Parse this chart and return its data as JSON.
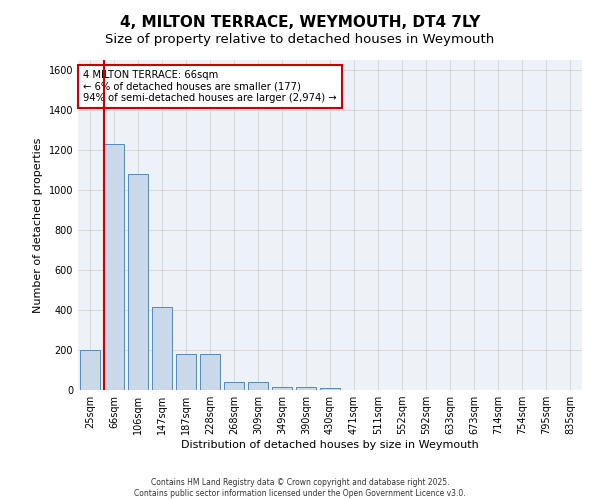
{
  "title": "4, MILTON TERRACE, WEYMOUTH, DT4 7LY",
  "subtitle": "Size of property relative to detached houses in Weymouth",
  "xlabel": "Distribution of detached houses by size in Weymouth",
  "ylabel": "Number of detached properties",
  "categories": [
    "25sqm",
    "66sqm",
    "106sqm",
    "147sqm",
    "187sqm",
    "228sqm",
    "268sqm",
    "309sqm",
    "349sqm",
    "390sqm",
    "430sqm",
    "471sqm",
    "511sqm",
    "552sqm",
    "592sqm",
    "633sqm",
    "673sqm",
    "714sqm",
    "754sqm",
    "795sqm",
    "835sqm"
  ],
  "values": [
    200,
    1230,
    1080,
    415,
    180,
    180,
    40,
    40,
    15,
    15,
    8,
    0,
    0,
    0,
    0,
    0,
    0,
    0,
    0,
    0,
    0
  ],
  "bar_color": "#c9d9ea",
  "bar_edge_color": "#5588bb",
  "highlight_index": 1,
  "highlight_line_color": "#cc0000",
  "annotation_text": "4 MILTON TERRACE: 66sqm\n← 6% of detached houses are smaller (177)\n94% of semi-detached houses are larger (2,974) →",
  "annotation_box_color": "#cc0000",
  "ylim": [
    0,
    1650
  ],
  "yticks": [
    0,
    200,
    400,
    600,
    800,
    1000,
    1200,
    1400,
    1600
  ],
  "grid_color": "#cccccc",
  "background_color": "#ffffff",
  "plot_bg_color": "#edf2f9",
  "title_fontsize": 11,
  "subtitle_fontsize": 9.5,
  "axis_label_fontsize": 8,
  "tick_fontsize": 7,
  "footnote": "Contains HM Land Registry data © Crown copyright and database right 2025.\nContains public sector information licensed under the Open Government Licence v3.0."
}
